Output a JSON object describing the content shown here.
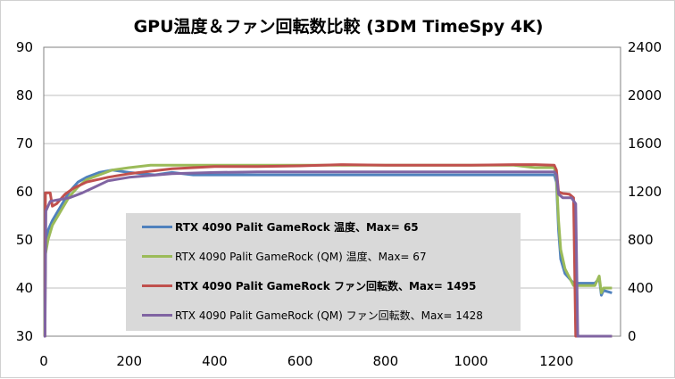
{
  "chart_data": {
    "type": "line",
    "title": "GPU温度＆ファン回転数比較 (3DM TimeSpy 4K)",
    "xlabel": "",
    "ylabel": "",
    "xlim": [
      0,
      1350
    ],
    "ylim": [
      30,
      90
    ],
    "y2lim": [
      0,
      2400
    ],
    "x_ticks": [
      "0",
      "200",
      "400",
      "600",
      "800",
      "1000",
      "1200"
    ],
    "y_ticks": [
      "30",
      "40",
      "50",
      "60",
      "70",
      "80",
      "90"
    ],
    "y2_ticks": [
      "0",
      "400",
      "800",
      "1200",
      "1600",
      "2000",
      "2400"
    ],
    "grid": "horizontal",
    "legend_position": "inside-bottom-center",
    "series": [
      {
        "name": "RTX 4090 Palit GameRock 温度、Max= 65",
        "axis": "left",
        "color": "#4f81bd",
        "bold": true,
        "points": [
          [
            0,
            30
          ],
          [
            2,
            30
          ],
          [
            4,
            48
          ],
          [
            10,
            52
          ],
          [
            20,
            54
          ],
          [
            40,
            57
          ],
          [
            60,
            60
          ],
          [
            80,
            62
          ],
          [
            100,
            63
          ],
          [
            130,
            64
          ],
          [
            160,
            64.5
          ],
          [
            200,
            64
          ],
          [
            260,
            63.5
          ],
          [
            300,
            64
          ],
          [
            350,
            63.5
          ],
          [
            400,
            63.5
          ],
          [
            500,
            63.5
          ],
          [
            600,
            63.5
          ],
          [
            700,
            63.5
          ],
          [
            800,
            63.5
          ],
          [
            900,
            63.5
          ],
          [
            1000,
            63.5
          ],
          [
            1100,
            63.5
          ],
          [
            1150,
            63.5
          ],
          [
            1195,
            63.5
          ],
          [
            1200,
            62
          ],
          [
            1205,
            52
          ],
          [
            1210,
            46
          ],
          [
            1220,
            43
          ],
          [
            1240,
            41
          ],
          [
            1270,
            41
          ],
          [
            1290,
            41
          ],
          [
            1300,
            42
          ],
          [
            1305,
            38.5
          ],
          [
            1310,
            39.5
          ],
          [
            1330,
            39
          ]
        ]
      },
      {
        "name": "RTX 4090 Palit GameRock (QM) 温度、Max= 67",
        "axis": "left",
        "color": "#9bbb59",
        "bold": false,
        "points": [
          [
            0,
            30
          ],
          [
            2,
            30
          ],
          [
            4,
            47
          ],
          [
            10,
            50
          ],
          [
            20,
            53
          ],
          [
            40,
            56
          ],
          [
            60,
            59
          ],
          [
            80,
            61
          ],
          [
            100,
            62.5
          ],
          [
            130,
            63.5
          ],
          [
            160,
            64.5
          ],
          [
            200,
            65
          ],
          [
            250,
            65.5
          ],
          [
            300,
            65.5
          ],
          [
            400,
            65.5
          ],
          [
            500,
            65.5
          ],
          [
            600,
            65.5
          ],
          [
            700,
            65.5
          ],
          [
            800,
            65.5
          ],
          [
            900,
            65.5
          ],
          [
            1000,
            65.5
          ],
          [
            1100,
            65.5
          ],
          [
            1150,
            65
          ],
          [
            1195,
            65
          ],
          [
            1200,
            63
          ],
          [
            1205,
            54
          ],
          [
            1210,
            48
          ],
          [
            1220,
            44
          ],
          [
            1240,
            40.5
          ],
          [
            1270,
            40.5
          ],
          [
            1290,
            40.5
          ],
          [
            1300,
            42.5
          ],
          [
            1305,
            39
          ],
          [
            1310,
            40
          ],
          [
            1330,
            40
          ]
        ]
      },
      {
        "name": "RTX 4090 Palit GameRock ファン回転数、Max= 1495",
        "axis": "right",
        "color": "#c0504d",
        "bold": true,
        "points": [
          [
            0,
            0
          ],
          [
            3,
            0
          ],
          [
            4,
            1190
          ],
          [
            15,
            1190
          ],
          [
            20,
            1080
          ],
          [
            30,
            1100
          ],
          [
            50,
            1180
          ],
          [
            70,
            1230
          ],
          [
            100,
            1280
          ],
          [
            150,
            1320
          ],
          [
            200,
            1350
          ],
          [
            300,
            1390
          ],
          [
            400,
            1410
          ],
          [
            500,
            1410
          ],
          [
            600,
            1415
          ],
          [
            700,
            1425
          ],
          [
            800,
            1420
          ],
          [
            900,
            1420
          ],
          [
            1000,
            1420
          ],
          [
            1100,
            1425
          ],
          [
            1150,
            1425
          ],
          [
            1195,
            1420
          ],
          [
            1200,
            1380
          ],
          [
            1205,
            1200
          ],
          [
            1215,
            1185
          ],
          [
            1230,
            1180
          ],
          [
            1240,
            1150
          ],
          [
            1245,
            0
          ],
          [
            1330,
            0
          ]
        ]
      },
      {
        "name": "RTX 4090 Palit GameRock (QM) ファン回転数、Max= 1428",
        "axis": "right",
        "color": "#8064a2",
        "bold": false,
        "points": [
          [
            0,
            0
          ],
          [
            3,
            0
          ],
          [
            5,
            1040
          ],
          [
            15,
            1120
          ],
          [
            30,
            1130
          ],
          [
            60,
            1150
          ],
          [
            90,
            1190
          ],
          [
            120,
            1240
          ],
          [
            150,
            1290
          ],
          [
            200,
            1320
          ],
          [
            300,
            1350
          ],
          [
            400,
            1360
          ],
          [
            500,
            1365
          ],
          [
            600,
            1365
          ],
          [
            700,
            1365
          ],
          [
            800,
            1365
          ],
          [
            900,
            1365
          ],
          [
            1000,
            1365
          ],
          [
            1100,
            1365
          ],
          [
            1150,
            1365
          ],
          [
            1195,
            1365
          ],
          [
            1200,
            1340
          ],
          [
            1205,
            1180
          ],
          [
            1215,
            1150
          ],
          [
            1235,
            1150
          ],
          [
            1245,
            1100
          ],
          [
            1250,
            0
          ],
          [
            1330,
            0
          ]
        ]
      }
    ]
  }
}
